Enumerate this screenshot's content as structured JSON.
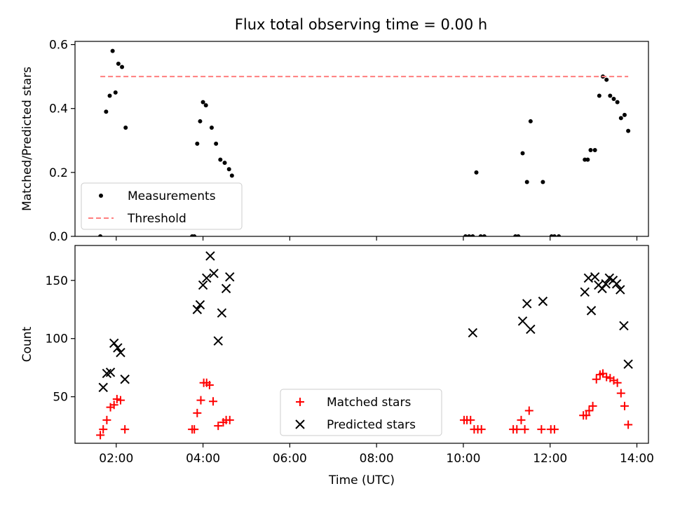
{
  "figure": {
    "title": "Flux total observing time = 0.00 h"
  },
  "chart_data": [
    {
      "type": "scatter",
      "title": "Flux total observing time = 0.00 h",
      "xlabel": "",
      "ylabel": "Matched/Predicted stars",
      "xlim": [
        "01:03",
        "14:16"
      ],
      "ylim": [
        0,
        0.61
      ],
      "grid": false,
      "legend_position": "lower-left",
      "yticks": [
        {
          "v": 0.0,
          "label": "0.0"
        },
        {
          "v": 0.2,
          "label": "0.2"
        },
        {
          "v": 0.4,
          "label": "0.4"
        },
        {
          "v": 0.6,
          "label": "0.6"
        }
      ],
      "xticks": [
        "02:00",
        "04:00",
        "06:00",
        "08:00",
        "10:00",
        "12:00",
        "14:00"
      ],
      "xtick_labels_visible": false,
      "series": [
        {
          "name": "Measurements",
          "marker": "dot",
          "color": "#000000",
          "points": [
            [
              "01:38",
              0.0
            ],
            [
              "01:46",
              0.39
            ],
            [
              "01:51",
              0.44
            ],
            [
              "01:55",
              0.58
            ],
            [
              "01:59",
              0.45
            ],
            [
              "02:03",
              0.54
            ],
            [
              "02:08",
              0.53
            ],
            [
              "02:13",
              0.34
            ],
            [
              "03:45",
              0.0
            ],
            [
              "03:48",
              0.0
            ],
            [
              "03:52",
              0.29
            ],
            [
              "03:56",
              0.36
            ],
            [
              "04:00",
              0.42
            ],
            [
              "04:04",
              0.41
            ],
            [
              "04:12",
              0.34
            ],
            [
              "04:18",
              0.29
            ],
            [
              "04:24",
              0.24
            ],
            [
              "04:30",
              0.23
            ],
            [
              "04:36",
              0.21
            ],
            [
              "04:40",
              0.19
            ],
            [
              "10:03",
              0.0
            ],
            [
              "10:08",
              0.0
            ],
            [
              "10:13",
              0.0
            ],
            [
              "10:18",
              0.2
            ],
            [
              "10:24",
              0.0
            ],
            [
              "10:29",
              0.0
            ],
            [
              "11:12",
              0.0
            ],
            [
              "11:16",
              0.0
            ],
            [
              "11:22",
              0.26
            ],
            [
              "11:28",
              0.17
            ],
            [
              "11:33",
              0.36
            ],
            [
              "11:50",
              0.17
            ],
            [
              "12:02",
              0.0
            ],
            [
              "12:06",
              0.0
            ],
            [
              "12:12",
              0.0
            ],
            [
              "12:48",
              0.24
            ],
            [
              "12:52",
              0.24
            ],
            [
              "12:56",
              0.27
            ],
            [
              "13:02",
              0.27
            ],
            [
              "13:08",
              0.44
            ],
            [
              "13:13",
              0.5
            ],
            [
              "13:18",
              0.49
            ],
            [
              "13:23",
              0.44
            ],
            [
              "13:28",
              0.43
            ],
            [
              "13:33",
              0.42
            ],
            [
              "13:38",
              0.37
            ],
            [
              "13:43",
              0.38
            ],
            [
              "13:48",
              0.33
            ]
          ]
        },
        {
          "name": "Threshold",
          "type": "line",
          "style": "dashed",
          "color": "#ff7f7f",
          "points": [
            [
              "01:38",
              0.5
            ],
            [
              "13:48",
              0.5
            ]
          ]
        }
      ]
    },
    {
      "type": "scatter",
      "title": "",
      "xlabel": "Time (UTC)",
      "ylabel": "Count",
      "xlim": [
        "01:03",
        "14:16"
      ],
      "ylim": [
        10,
        180
      ],
      "grid": false,
      "legend_position": "lower-center",
      "yticks": [
        {
          "v": 50,
          "label": "50"
        },
        {
          "v": 100,
          "label": "100"
        },
        {
          "v": 150,
          "label": "150"
        }
      ],
      "xticks": [
        "02:00",
        "04:00",
        "06:00",
        "08:00",
        "10:00",
        "12:00",
        "14:00"
      ],
      "series": [
        {
          "name": "Matched stars",
          "marker": "plus",
          "color": "#ff0000",
          "points": [
            [
              "01:38",
              17
            ],
            [
              "01:42",
              22
            ],
            [
              "01:47",
              30
            ],
            [
              "01:52",
              41
            ],
            [
              "01:57",
              43
            ],
            [
              "02:01",
              48
            ],
            [
              "02:06",
              47
            ],
            [
              "02:12",
              22
            ],
            [
              "03:45",
              22
            ],
            [
              "03:48",
              22
            ],
            [
              "03:52",
              36
            ],
            [
              "03:57",
              47
            ],
            [
              "04:01",
              62
            ],
            [
              "04:05",
              62
            ],
            [
              "04:09",
              60
            ],
            [
              "04:14",
              46
            ],
            [
              "04:21",
              25
            ],
            [
              "04:28",
              28
            ],
            [
              "04:32",
              30
            ],
            [
              "04:37",
              30
            ],
            [
              "10:01",
              30
            ],
            [
              "10:05",
              30
            ],
            [
              "10:10",
              30
            ],
            [
              "10:15",
              22
            ],
            [
              "10:20",
              22
            ],
            [
              "10:25",
              22
            ],
            [
              "11:09",
              22
            ],
            [
              "11:14",
              22
            ],
            [
              "11:20",
              30
            ],
            [
              "11:25",
              22
            ],
            [
              "11:31",
              38
            ],
            [
              "11:48",
              22
            ],
            [
              "12:01",
              22
            ],
            [
              "12:06",
              22
            ],
            [
              "12:46",
              34
            ],
            [
              "12:50",
              34
            ],
            [
              "12:54",
              38
            ],
            [
              "12:59",
              42
            ],
            [
              "13:04",
              65
            ],
            [
              "13:09",
              69
            ],
            [
              "13:13",
              70
            ],
            [
              "13:18",
              67
            ],
            [
              "13:23",
              66
            ],
            [
              "13:28",
              64
            ],
            [
              "13:33",
              62
            ],
            [
              "13:38",
              53
            ],
            [
              "13:43",
              42
            ],
            [
              "13:48",
              26
            ]
          ]
        },
        {
          "name": "Predicted stars",
          "marker": "x",
          "color": "#000000",
          "points": [
            [
              "01:42",
              58
            ],
            [
              "01:47",
              70
            ],
            [
              "01:52",
              71
            ],
            [
              "01:57",
              96
            ],
            [
              "02:02",
              92
            ],
            [
              "02:06",
              88
            ],
            [
              "02:12",
              65
            ],
            [
              "03:52",
              125
            ],
            [
              "03:56",
              129
            ],
            [
              "04:00",
              146
            ],
            [
              "04:05",
              152
            ],
            [
              "04:10",
              171
            ],
            [
              "04:15",
              156
            ],
            [
              "04:21",
              98
            ],
            [
              "04:26",
              122
            ],
            [
              "04:32",
              143
            ],
            [
              "04:37",
              153
            ],
            [
              "10:13",
              105
            ],
            [
              "11:22",
              115
            ],
            [
              "11:28",
              130
            ],
            [
              "11:33",
              108
            ],
            [
              "11:50",
              132
            ],
            [
              "12:48",
              140
            ],
            [
              "12:53",
              152
            ],
            [
              "12:57",
              124
            ],
            [
              "13:02",
              153
            ],
            [
              "13:07",
              146
            ],
            [
              "13:12",
              143
            ],
            [
              "13:17",
              147
            ],
            [
              "13:22",
              152
            ],
            [
              "13:27",
              150
            ],
            [
              "13:32",
              147
            ],
            [
              "13:37",
              142
            ],
            [
              "13:42",
              111
            ],
            [
              "13:48",
              78
            ]
          ]
        }
      ]
    }
  ]
}
